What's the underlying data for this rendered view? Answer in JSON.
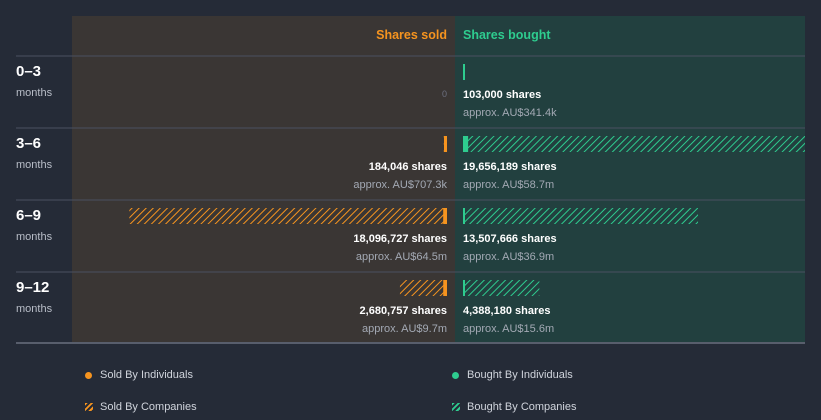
{
  "colors": {
    "background": "#252b37",
    "sold_panel": "#3a3634",
    "bought_panel": "#22403f",
    "sold": "#f6941f",
    "bought": "#2ecc8f",
    "divider": "#4b5060"
  },
  "chart_data": {
    "type": "bar",
    "orientation": "horizontal-diverging",
    "headers": {
      "sold": "Shares sold",
      "bought": "Shares bought"
    },
    "unit_label": "months",
    "categories": [
      "0–3",
      "3–6",
      "6–9",
      "9–12"
    ],
    "sold": [
      {
        "shares": 0,
        "shares_label": "",
        "approx_label": "",
        "zero_label": "0",
        "individual_fraction": 0
      },
      {
        "shares": 184046,
        "shares_label": "184,046 shares",
        "approx_label": "approx. AU$707.3k",
        "zero_label": "",
        "individual_fraction": 0
      },
      {
        "shares": 18096727,
        "shares_label": "18,096,727 shares",
        "approx_label": "approx. AU$64.5m",
        "zero_label": "",
        "individual_fraction": 0.012
      },
      {
        "shares": 2680757,
        "shares_label": "2,680,757 shares",
        "approx_label": "approx. AU$9.7m",
        "zero_label": "",
        "individual_fraction": 0.08
      }
    ],
    "bought": [
      {
        "shares": 103000,
        "shares_label": "103,000 shares",
        "approx_label": "approx. AU$341.4k",
        "individual_fraction": 1
      },
      {
        "shares": 19656189,
        "shares_label": "19,656,189 shares",
        "approx_label": "approx. AU$58.7m",
        "individual_fraction": 0.015
      },
      {
        "shares": 13507666,
        "shares_label": "13,507,666 shares",
        "approx_label": "approx. AU$36.9m",
        "individual_fraction": 0
      },
      {
        "shares": 4388180,
        "shares_label": "4,388,180 shares",
        "approx_label": "approx. AU$15.6m",
        "individual_fraction": 0
      }
    ],
    "max_shares": 19656189,
    "legend": [
      {
        "label": "Sold By Individuals",
        "kind": "sold-individuals"
      },
      {
        "label": "Bought By Individuals",
        "kind": "bought-individuals"
      },
      {
        "label": "Sold By Companies",
        "kind": "sold-companies"
      },
      {
        "label": "Bought By Companies",
        "kind": "bought-companies"
      }
    ]
  }
}
